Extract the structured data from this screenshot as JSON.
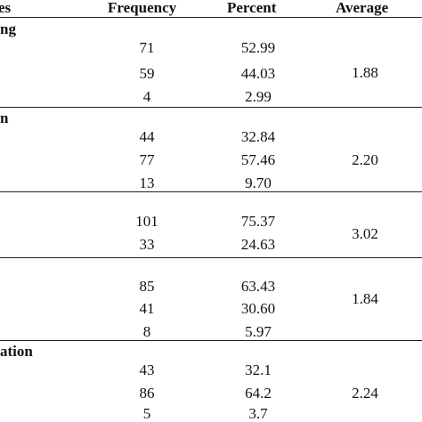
{
  "table": {
    "columns": {
      "variables": "es",
      "frequency": "Frequency",
      "percent": "Percent",
      "average": "Average"
    },
    "sections": [
      {
        "label": "ng",
        "average": "1.88",
        "rows": [
          {
            "frequency": "71",
            "percent": "52.99"
          },
          {
            "frequency": "59",
            "percent": "44.03"
          },
          {
            "frequency": "4",
            "percent": "2.99"
          }
        ]
      },
      {
        "label": "n",
        "average": "2.20",
        "rows": [
          {
            "frequency": "44",
            "percent": "32.84"
          },
          {
            "frequency": "77",
            "percent": "57.46"
          },
          {
            "frequency": "13",
            "percent": "9.70"
          }
        ]
      },
      {
        "label": "",
        "average": "3.02",
        "rows": [
          {
            "frequency": "101",
            "percent": "75.37"
          },
          {
            "frequency": "33",
            "percent": "24.63"
          }
        ]
      },
      {
        "label": "",
        "average": "1.84",
        "rows": [
          {
            "frequency": "85",
            "percent": "63.43"
          },
          {
            "frequency": "41",
            "percent": "30.60"
          },
          {
            "frequency": "8",
            "percent": "5.97"
          }
        ]
      },
      {
        "label": "ation",
        "average": "2.24",
        "rows": [
          {
            "frequency": "43",
            "percent": "32.1"
          },
          {
            "frequency": "86",
            "percent": "64.2"
          },
          {
            "frequency": "5",
            "percent": "3.7"
          }
        ]
      }
    ]
  }
}
